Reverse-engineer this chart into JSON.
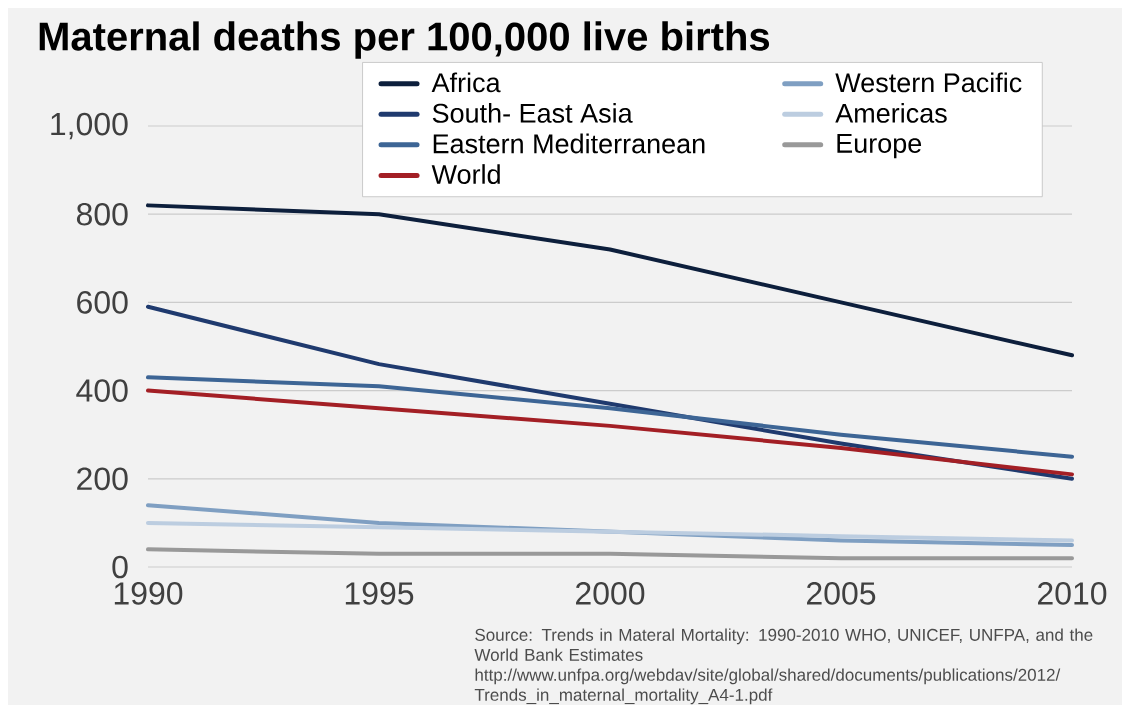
{
  "chart_data": {
    "type": "line",
    "title": "Maternal deaths per 100,000 live births",
    "x": [
      1990,
      1995,
      2000,
      2005,
      2010
    ],
    "series": [
      {
        "name": "Africa",
        "color": "#0d1f3c",
        "values": [
          820,
          800,
          720,
          600,
          480
        ]
      },
      {
        "name": "South- East Asia",
        "color": "#1f3a6e",
        "values": [
          590,
          460,
          370,
          280,
          200
        ]
      },
      {
        "name": "Eastern Mediterranean",
        "color": "#3d6595",
        "values": [
          430,
          410,
          360,
          300,
          250
        ]
      },
      {
        "name": "World",
        "color": "#a31f25",
        "values": [
          400,
          360,
          320,
          270,
          210
        ]
      },
      {
        "name": "Western Pacific",
        "color": "#7f9fc2",
        "values": [
          140,
          100,
          80,
          60,
          50
        ]
      },
      {
        "name": "Americas",
        "color": "#bccde0",
        "values": [
          100,
          90,
          80,
          70,
          60
        ]
      },
      {
        "name": "Europe",
        "color": "#999999",
        "values": [
          40,
          30,
          30,
          20,
          20
        ]
      }
    ],
    "xlim": [
      1990,
      2010
    ],
    "xticks": [
      1990,
      1995,
      2000,
      2005,
      2010
    ],
    "ylim": [
      0,
      1000
    ],
    "yticks": [
      0,
      200,
      400,
      600,
      800,
      {
        "value": 1000,
        "label": "1,000"
      }
    ],
    "grid": "y",
    "legend": "top",
    "marker": "none",
    "line_style": "solid",
    "annotations": [
      "Source: Trends in Materal Mortality: 1990-2010 WHO, UNICEF, UNFPA, and the World Bank Estimates",
      "http://www.unfpa.org/webdav/site/global/shared/documents/publications/2012/Trends_in_maternal_mortality_A4-1.pdf"
    ]
  }
}
